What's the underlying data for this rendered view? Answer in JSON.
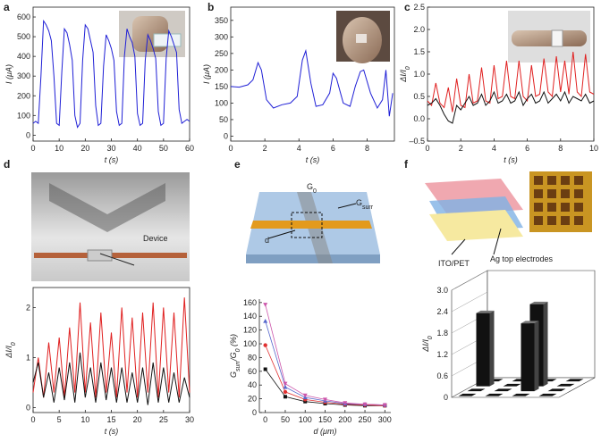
{
  "chart_data": [
    {
      "type": "line",
      "letter": "a",
      "xlabel": "t (s)",
      "ylabel": [
        "I (μA)"
      ],
      "frame": "box",
      "x": [
        0,
        1,
        2,
        3,
        4,
        5,
        6,
        7,
        8,
        9,
        10,
        11,
        12,
        13,
        14,
        15,
        16,
        17,
        18,
        19,
        20,
        21,
        22,
        23,
        24,
        25,
        26,
        27,
        28,
        29,
        30,
        31,
        32,
        33,
        34,
        35,
        36,
        37,
        38,
        39,
        40,
        41,
        42,
        43,
        44,
        45,
        46,
        47,
        48,
        49,
        50,
        51,
        52,
        53,
        54,
        55,
        56,
        57,
        58,
        59,
        60
      ],
      "series": [
        {
          "color": "#1f1fd6",
          "values": [
            60,
            70,
            60,
            300,
            580,
            560,
            530,
            480,
            300,
            60,
            50,
            320,
            540,
            520,
            460,
            380,
            100,
            40,
            60,
            380,
            560,
            540,
            480,
            420,
            150,
            50,
            60,
            350,
            510,
            480,
            440,
            380,
            120,
            50,
            60,
            400,
            540,
            500,
            470,
            400,
            110,
            50,
            60,
            380,
            510,
            480,
            440,
            390,
            120,
            50,
            60,
            390,
            530,
            500,
            460,
            420,
            130,
            60,
            70,
            80,
            70
          ]
        }
      ],
      "xlim": [
        0,
        60
      ],
      "ylim": [
        -30,
        650
      ],
      "xticks": [
        0,
        10,
        20,
        30,
        40,
        50,
        60
      ],
      "yticks": [
        0,
        100,
        200,
        300,
        400,
        500,
        600
      ]
    },
    {
      "type": "line",
      "letter": "b",
      "xlabel": "t (s)",
      "ylabel": [
        "I (μA)"
      ],
      "frame": "box",
      "x": [
        0,
        0.5,
        1,
        1.3,
        1.6,
        1.8,
        2.1,
        2.5,
        3,
        3.5,
        3.9,
        4.2,
        4.4,
        4.7,
        5.0,
        5.4,
        5.8,
        6.0,
        6.2,
        6.6,
        7,
        7.3,
        7.6,
        7.8,
        8.2,
        8.6,
        8.9,
        9.1,
        9.3,
        9.5
      ],
      "series": [
        {
          "color": "#1f1fd6",
          "values": [
            150,
            148,
            155,
            170,
            222,
            200,
            110,
            85,
            95,
            100,
            120,
            230,
            258,
            160,
            90,
            95,
            130,
            190,
            175,
            100,
            90,
            150,
            195,
            200,
            130,
            85,
            110,
            200,
            60,
            130
          ]
        }
      ],
      "xlim": [
        0,
        9.6
      ],
      "ylim": [
        -15,
        390
      ],
      "xticks": [
        0,
        2,
        4,
        6,
        8
      ],
      "yticks": [
        0,
        50,
        100,
        150,
        200,
        250,
        300,
        350
      ]
    },
    {
      "type": "line",
      "letter": "c",
      "xlabel": "t (s)",
      "ylabel": [
        "ΔI/I",
        "0"
      ],
      "frame": "box",
      "x": [
        0,
        0.25,
        0.5,
        0.75,
        1,
        1.25,
        1.5,
        1.75,
        2,
        2.25,
        2.5,
        2.75,
        3,
        3.25,
        3.5,
        3.75,
        4,
        4.25,
        4.5,
        4.75,
        5,
        5.25,
        5.5,
        5.75,
        6,
        6.25,
        6.5,
        6.75,
        7,
        7.25,
        7.5,
        7.75,
        8,
        8.25,
        8.5,
        8.75,
        9,
        9.25,
        9.5,
        9.75,
        10
      ],
      "series": [
        {
          "color": "#e02020",
          "values": [
            0.4,
            0.3,
            0.8,
            0.35,
            0.25,
            0.7,
            0.15,
            0.9,
            0.3,
            0.25,
            1.0,
            0.35,
            0.4,
            1.15,
            0.4,
            0.35,
            1.2,
            0.45,
            0.5,
            1.3,
            0.5,
            0.45,
            1.3,
            0.5,
            0.4,
            1.2,
            0.5,
            0.55,
            1.35,
            0.6,
            0.5,
            1.4,
            0.6,
            1.3,
            0.55,
            1.5,
            0.6,
            0.5,
            1.45,
            0.6,
            0.55
          ]
        },
        {
          "color": "#111111",
          "values": [
            0.3,
            0.35,
            0.45,
            0.3,
            0.1,
            -0.05,
            -0.1,
            0.3,
            0.2,
            0.35,
            0.5,
            0.3,
            0.35,
            0.55,
            0.3,
            0.4,
            0.6,
            0.35,
            0.4,
            0.55,
            0.35,
            0.4,
            0.6,
            0.3,
            0.45,
            0.55,
            0.35,
            0.4,
            0.6,
            0.35,
            0.45,
            0.55,
            0.4,
            0.6,
            0.35,
            0.5,
            0.45,
            0.4,
            0.55,
            0.35,
            0.4
          ]
        }
      ],
      "xlim": [
        0,
        10
      ],
      "ylim": [
        -0.5,
        2.5
      ],
      "xticks": [
        0,
        2,
        4,
        6,
        8,
        10
      ],
      "yticks": [
        {
          "value": -0.5,
          "label": "–0.5"
        },
        {
          "value": 0,
          "label": "0.0"
        },
        0.5,
        {
          "value": 1,
          "label": "1.0"
        },
        1.5,
        {
          "value": 2,
          "label": "2.0"
        },
        2.5
      ]
    },
    {
      "type": "line",
      "letter": "d",
      "xlabel": "t (s)",
      "ylabel": [
        "ΔI/I",
        "0"
      ],
      "frame": "box",
      "annotations": [
        [
          "Device"
        ]
      ],
      "x": [
        0,
        1,
        2,
        3,
        4,
        5,
        6,
        7,
        8,
        9,
        10,
        11,
        12,
        13,
        14,
        15,
        16,
        17,
        18,
        19,
        20,
        21,
        22,
        23,
        24,
        25,
        26,
        27,
        28,
        29,
        30
      ],
      "series": [
        {
          "color": "#e02020",
          "values": [
            0.3,
            1.0,
            0.2,
            1.3,
            0.3,
            1.4,
            0.2,
            1.6,
            0.3,
            2.1,
            0.3,
            1.7,
            0.2,
            1.9,
            0.3,
            1.5,
            0.2,
            2.0,
            0.3,
            1.8,
            0.2,
            1.9,
            0.3,
            2.1,
            0.2,
            2.0,
            0.3,
            1.9,
            0.2,
            2.2,
            0.3
          ]
        },
        {
          "color": "#111111",
          "values": [
            0.5,
            0.9,
            0.2,
            0.7,
            0.1,
            0.8,
            0.15,
            0.9,
            0.1,
            1.1,
            0.2,
            0.8,
            0.1,
            0.9,
            0.15,
            0.8,
            0.1,
            0.8,
            0.1,
            0.7,
            0.1,
            0.8,
            0.05,
            0.9,
            0.1,
            0.8,
            0.1,
            0.7,
            0.1,
            0.6,
            0.2
          ]
        }
      ],
      "xlim": [
        0,
        30
      ],
      "ylim": [
        -0.1,
        2.4
      ],
      "xticks": [
        0,
        5,
        10,
        15,
        20,
        25,
        30
      ],
      "yticks": [
        0,
        1,
        2
      ]
    },
    {
      "type": "line",
      "letter": "e",
      "xlabel": "d (μm)",
      "ylabel": [
        "G",
        "surr",
        "/G",
        "0",
        " (%)"
      ],
      "frame": "axes",
      "annotations": [
        [
          "G",
          "0"
        ],
        [
          "G",
          "surr"
        ],
        [
          "d"
        ]
      ],
      "x": [
        0,
        50,
        100,
        150,
        200,
        250,
        300
      ],
      "series": [
        {
          "color": "#111111",
          "marker": "square",
          "values": [
            63,
            23,
            16,
            13,
            11,
            10,
            10
          ]
        },
        {
          "color": "#e03030",
          "marker": "circle",
          "values": [
            98,
            30,
            19,
            15,
            12,
            11,
            10
          ]
        },
        {
          "color": "#5566cc",
          "marker": "triangle",
          "values": [
            133,
            37,
            22,
            17,
            13,
            12,
            11
          ]
        },
        {
          "color": "#cc55aa",
          "marker": "down-triangle",
          "values": [
            157,
            42,
            25,
            19,
            14,
            12,
            11
          ]
        }
      ],
      "xlim": [
        -15,
        315
      ],
      "ylim": [
        0,
        165
      ],
      "xticks": [
        0,
        50,
        100,
        150,
        200,
        250,
        300
      ],
      "yticks": [
        0,
        20,
        40,
        60,
        80,
        100,
        120,
        140,
        160
      ]
    },
    {
      "type": "bar3d",
      "letter": "f",
      "ylabel": [
        "ΔI/I",
        "0"
      ],
      "annotations": [
        [
          "ITO/PET"
        ],
        [
          "Ag top electrodes"
        ]
      ],
      "values": [
        0,
        0,
        0,
        0,
        0,
        0,
        1.9,
        0,
        2.05,
        0,
        2.3,
        0,
        0,
        0,
        0,
        0
      ],
      "color": "#111111",
      "ylim": [
        0,
        3.0
      ],
      "yticks": [
        0,
        0.6,
        1.2,
        1.8,
        2.4,
        {
          "value": 3.0,
          "label": "3.0"
        }
      ]
    }
  ]
}
